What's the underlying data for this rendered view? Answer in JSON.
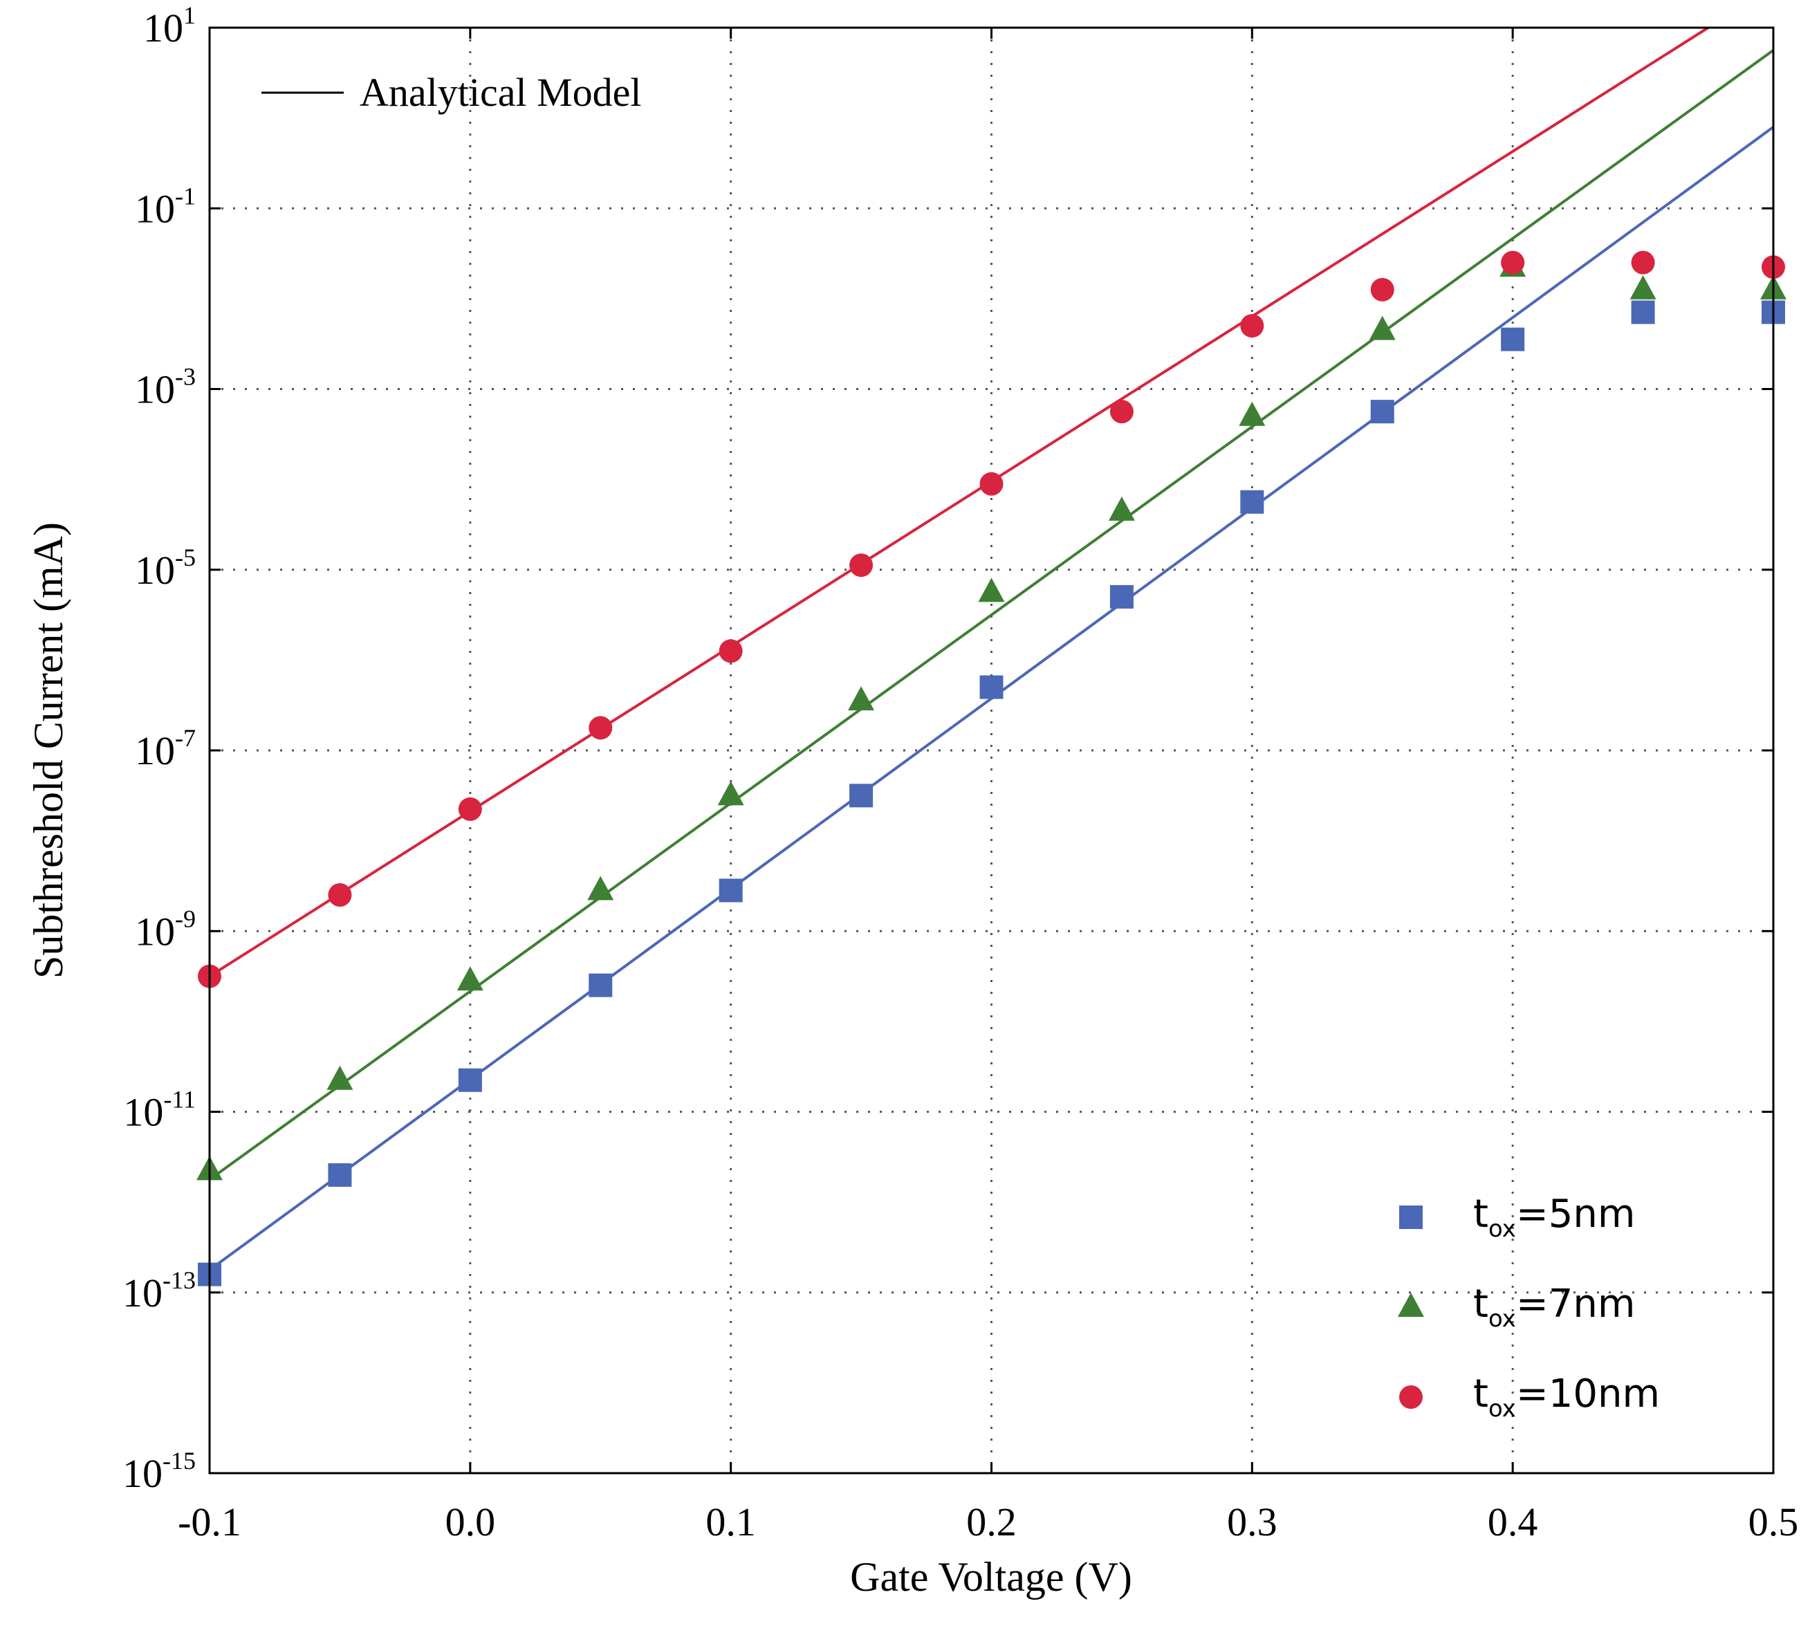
{
  "chart_data": {
    "type": "scatter",
    "title": "",
    "xlabel": "Gate Voltage (V)",
    "ylabel": "Subthreshold Current (mA)",
    "xlim": [
      -0.1,
      0.5
    ],
    "ylim_log10": [
      -15,
      1
    ],
    "yscale": "log",
    "grid": true,
    "x_ticks": [
      {
        "value": -0.1,
        "label": "-0.1"
      },
      {
        "value": 0.0,
        "label": "0.0"
      },
      {
        "value": 0.1,
        "label": "0.1"
      },
      {
        "value": 0.2,
        "label": "0.2"
      },
      {
        "value": 0.3,
        "label": "0.3"
      },
      {
        "value": 0.4,
        "label": "0.4"
      },
      {
        "value": 0.5,
        "label": "0.5"
      }
    ],
    "y_ticks": [
      {
        "exp": 1,
        "base": "10",
        "sup": "1"
      },
      {
        "exp": -1,
        "base": "10",
        "sup": "-1"
      },
      {
        "exp": -3,
        "base": "10",
        "sup": "-3"
      },
      {
        "exp": -5,
        "base": "10",
        "sup": "-5"
      },
      {
        "exp": -7,
        "base": "10",
        "sup": "-7"
      },
      {
        "exp": -9,
        "base": "10",
        "sup": "-9"
      },
      {
        "exp": -11,
        "base": "10",
        "sup": "-11"
      },
      {
        "exp": -13,
        "base": "10",
        "sup": "-13"
      },
      {
        "exp": -15,
        "base": "10",
        "sup": "-15"
      }
    ],
    "model_legend_label": "Analytical Model",
    "legend_position": "bottom-right",
    "series": [
      {
        "name": "tox=5nm",
        "label_main": "t",
        "label_sub": "ox",
        "label_rest": "=5nm",
        "marker": "square",
        "color": "#4a68b5",
        "x": [
          -0.1,
          -0.05,
          0.0,
          0.05,
          0.1,
          0.15,
          0.2,
          0.25,
          0.3,
          0.35,
          0.4,
          0.45,
          0.5
        ],
        "log10_y": [
          -12.8,
          -11.7,
          -10.65,
          -9.6,
          -8.55,
          -7.5,
          -6.3,
          -5.3,
          -4.25,
          -3.25,
          -2.45,
          -2.15,
          -2.15
        ],
        "model_line": {
          "x": [
            -0.1,
            0.5
          ],
          "log10_y": [
            -12.75,
            -0.1
          ]
        }
      },
      {
        "name": "tox=7nm",
        "label_main": "t",
        "label_sub": "ox",
        "label_rest": "=7nm",
        "marker": "triangle",
        "color": "#3f7f34",
        "x": [
          -0.1,
          -0.05,
          0.0,
          0.05,
          0.1,
          0.15,
          0.2,
          0.25,
          0.3,
          0.35,
          0.4,
          0.45,
          0.5
        ],
        "log10_y": [
          -11.65,
          -10.65,
          -9.55,
          -8.55,
          -7.5,
          -6.45,
          -5.25,
          -4.35,
          -3.3,
          -2.35,
          -1.65,
          -1.9,
          -1.9
        ],
        "model_line": {
          "x": [
            -0.1,
            0.5
          ],
          "log10_y": [
            -11.75,
            0.75
          ]
        }
      },
      {
        "name": "tox=10nm",
        "label_main": "t",
        "label_sub": "ox",
        "label_rest": "=10nm",
        "marker": "circle",
        "color": "#d8243f",
        "x": [
          -0.1,
          -0.05,
          0.0,
          0.05,
          0.1,
          0.15,
          0.2,
          0.25,
          0.3,
          0.35,
          0.4,
          0.45,
          0.5
        ],
        "log10_y": [
          -9.5,
          -8.6,
          -7.65,
          -6.75,
          -5.9,
          -4.95,
          -4.05,
          -3.25,
          -2.3,
          -1.9,
          -1.6,
          -1.6,
          -1.65
        ],
        "model_line": {
          "x": [
            -0.1,
            0.475
          ],
          "log10_y": [
            -9.5,
            1.0
          ]
        }
      }
    ]
  }
}
